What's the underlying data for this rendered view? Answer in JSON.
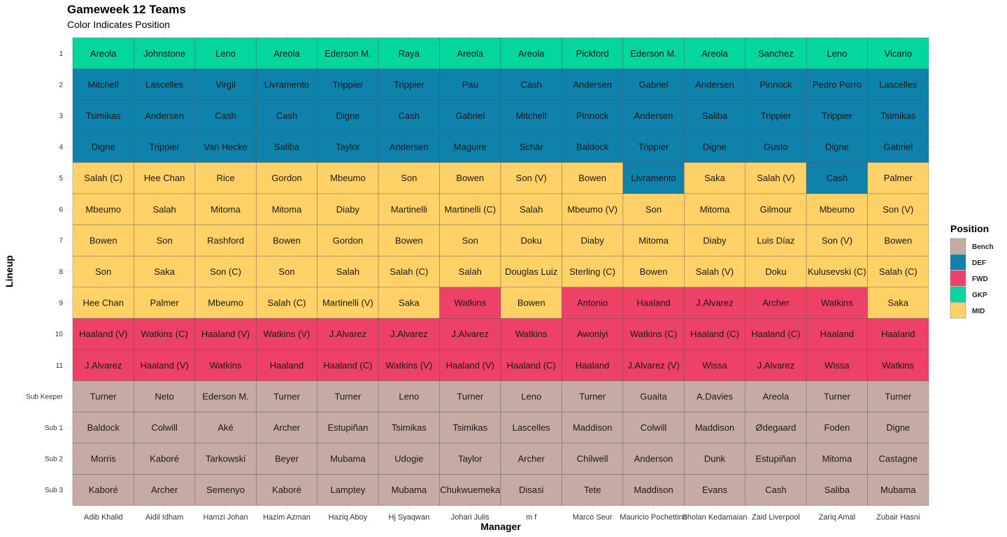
{
  "chart_data": {
    "type": "heatmap",
    "title": "Gameweek 12 Teams",
    "subtitle": "Color Indicates Position",
    "xlabel": "Manager",
    "ylabel": "Lineup",
    "legend": {
      "title": "Position",
      "placement": "right",
      "entries": [
        {
          "label": "Bench",
          "color": "#c6aba4"
        },
        {
          "label": "DEF",
          "color": "#0f82ac"
        },
        {
          "label": "FWD",
          "color": "#ee4168"
        },
        {
          "label": "GKP",
          "color": "#04d69e"
        },
        {
          "label": "MID",
          "color": "#ffd166"
        }
      ]
    },
    "rows": [
      "1",
      "2",
      "3",
      "4",
      "5",
      "6",
      "7",
      "8",
      "9",
      "10",
      "11",
      "Sub Keeper",
      "Sub 1",
      "Sub 2",
      "Sub 3"
    ],
    "columns": [
      "Adib Khalid",
      "Aidil Idham",
      "Hamzi Johan",
      "Hazim Azman",
      "Haziq Aboy",
      "Hj Syaqwan",
      "Johari Julis",
      "m f",
      "Marco Seur",
      "Mauricio Pochettino",
      "Sholan Kedamaian",
      "Zaid Liverpool",
      "Zariq Amal",
      "Zubair Hasni"
    ],
    "position_codes": {
      "B": "Bench",
      "D": "DEF",
      "F": "FWD",
      "G": "GKP",
      "M": "MID"
    },
    "positions": [
      [
        "G",
        "G",
        "G",
        "G",
        "G",
        "G",
        "G",
        "G",
        "G",
        "G",
        "G",
        "G",
        "G",
        "G"
      ],
      [
        "D",
        "D",
        "D",
        "D",
        "D",
        "D",
        "D",
        "D",
        "D",
        "D",
        "D",
        "D",
        "D",
        "D"
      ],
      [
        "D",
        "D",
        "D",
        "D",
        "D",
        "D",
        "D",
        "D",
        "D",
        "D",
        "D",
        "D",
        "D",
        "D"
      ],
      [
        "D",
        "D",
        "D",
        "D",
        "D",
        "D",
        "D",
        "D",
        "D",
        "D",
        "D",
        "D",
        "D",
        "D"
      ],
      [
        "M",
        "M",
        "M",
        "M",
        "M",
        "M",
        "M",
        "M",
        "M",
        "D",
        "M",
        "M",
        "D",
        "M"
      ],
      [
        "M",
        "M",
        "M",
        "M",
        "M",
        "M",
        "M",
        "M",
        "M",
        "M",
        "M",
        "M",
        "M",
        "M"
      ],
      [
        "M",
        "M",
        "M",
        "M",
        "M",
        "M",
        "M",
        "M",
        "M",
        "M",
        "M",
        "M",
        "M",
        "M"
      ],
      [
        "M",
        "M",
        "M",
        "M",
        "M",
        "M",
        "M",
        "M",
        "M",
        "M",
        "M",
        "M",
        "M",
        "M"
      ],
      [
        "M",
        "M",
        "M",
        "M",
        "M",
        "M",
        "F",
        "M",
        "F",
        "F",
        "F",
        "F",
        "F",
        "M"
      ],
      [
        "F",
        "F",
        "F",
        "F",
        "F",
        "F",
        "F",
        "F",
        "F",
        "F",
        "F",
        "F",
        "F",
        "F"
      ],
      [
        "F",
        "F",
        "F",
        "F",
        "F",
        "F",
        "F",
        "F",
        "F",
        "F",
        "F",
        "F",
        "F",
        "F"
      ],
      [
        "B",
        "B",
        "B",
        "B",
        "B",
        "B",
        "B",
        "B",
        "B",
        "B",
        "B",
        "B",
        "B",
        "B"
      ],
      [
        "B",
        "B",
        "B",
        "B",
        "B",
        "B",
        "B",
        "B",
        "B",
        "B",
        "B",
        "B",
        "B",
        "B"
      ],
      [
        "B",
        "B",
        "B",
        "B",
        "B",
        "B",
        "B",
        "B",
        "B",
        "B",
        "B",
        "B",
        "B",
        "B"
      ],
      [
        "B",
        "B",
        "B",
        "B",
        "B",
        "B",
        "B",
        "B",
        "B",
        "B",
        "B",
        "B",
        "B",
        "B"
      ]
    ],
    "players": [
      [
        "Areola",
        "Johnstone",
        "Leno",
        "Areola",
        "Ederson M.",
        "Raya",
        "Areola",
        "Areola",
        "Pickford",
        "Ederson M.",
        "Areola",
        "Sanchez",
        "Leno",
        "Vicario"
      ],
      [
        "Mitchell",
        "Lascelles",
        "Virgil",
        "Livramento",
        "Trippier",
        "Trippier",
        "Pau",
        "Cash",
        "Andersen",
        "Gabriel",
        "Andersen",
        "Pinnock",
        "Pedro Porro",
        "Lascelles"
      ],
      [
        "Tsimikas",
        "Andersen",
        "Cash",
        "Cash",
        "Digne",
        "Cash",
        "Gabriel",
        "Mitchell",
        "Pinnock",
        "Andersen",
        "Saliba",
        "Trippier",
        "Trippier",
        "Tsimikas"
      ],
      [
        "Digne",
        "Trippier",
        "Van Hecke",
        "Saliba",
        "Taylor",
        "Andersen",
        "Maguire",
        "Schär",
        "Baldock",
        "Trippier",
        "Digne",
        "Gusto",
        "Digne",
        "Gabriel"
      ],
      [
        "Salah (C)",
        "Hee Chan",
        "Rice",
        "Gordon",
        "Mbeumo",
        "Son",
        "Bowen",
        "Son (V)",
        "Bowen",
        "Livramento",
        "Saka",
        "Salah (V)",
        "Cash",
        "Palmer"
      ],
      [
        "Mbeumo",
        "Salah",
        "Mitoma",
        "Mitoma",
        "Diaby",
        "Martinelli",
        "Martinelli (C)",
        "Salah",
        "Mbeumo (V)",
        "Son",
        "Mitoma",
        "Gilmour",
        "Mbeumo",
        "Son (V)"
      ],
      [
        "Bowen",
        "Son",
        "Rashford",
        "Bowen",
        "Gordon",
        "Bowen",
        "Son",
        "Doku",
        "Diaby",
        "Mitoma",
        "Diaby",
        "Luis Díaz",
        "Son (V)",
        "Bowen"
      ],
      [
        "Son",
        "Saka",
        "Son (C)",
        "Son",
        "Salah",
        "Salah (C)",
        "Salah",
        "Douglas Luiz",
        "Sterling (C)",
        "Bowen",
        "Salah (V)",
        "Doku",
        "Kulusevski (C)",
        "Salah (C)"
      ],
      [
        "Hee Chan",
        "Palmer",
        "Mbeumo",
        "Salah (C)",
        "Martinelli (V)",
        "Saka",
        "Watkins",
        "Bowen",
        "Antonio",
        "Haaland",
        "J.Alvarez",
        "Archer",
        "Watkins",
        "Saka"
      ],
      [
        "Haaland (V)",
        "Watkins (C)",
        "Haaland (V)",
        "Watkins (V)",
        "J.Alvarez",
        "J.Alvarez",
        "J.Alvarez",
        "Watkins",
        "Awoniyi",
        "Watkins (C)",
        "Haaland (C)",
        "Haaland (C)",
        "Haaland",
        "Haaland"
      ],
      [
        "J.Alvarez",
        "Haaland (V)",
        "Watkins",
        "Haaland",
        "Haaland (C)",
        "Watkins (V)",
        "Haaland (V)",
        "Haaland (C)",
        "Haaland",
        "J.Alvarez (V)",
        "Wissa",
        "J.Alvarez",
        "Wissa",
        "Watkins"
      ],
      [
        "Turner",
        "Neto",
        "Ederson M.",
        "Turner",
        "Turner",
        "Leno",
        "Turner",
        "Leno",
        "Turner",
        "Guaita",
        "A.Davies",
        "Areola",
        "Turner",
        "Turner"
      ],
      [
        "Baldock",
        "Colwill",
        "Aké",
        "Archer",
        "Estupiñan",
        "Tsimikas",
        "Tsimikas",
        "Lascelles",
        "Maddison",
        "Colwill",
        "Maddison",
        "Ødegaard",
        "Foden",
        "Digne"
      ],
      [
        "Morris",
        "Kaboré",
        "Tarkowski",
        "Beyer",
        "Mubama",
        "Udogie",
        "Taylor",
        "Archer",
        "Chilwell",
        "Anderson",
        "Dunk",
        "Estupiñan",
        "Mitoma",
        "Castagne"
      ],
      [
        "Kaboré",
        "Archer",
        "Semenyo",
        "Kaboré",
        "Lamptey",
        "Mubama",
        "Chukwuemeka",
        "Disasi",
        "Tete",
        "Maddison",
        "Evans",
        "Cash",
        "Saliba",
        "Mubama"
      ]
    ]
  }
}
